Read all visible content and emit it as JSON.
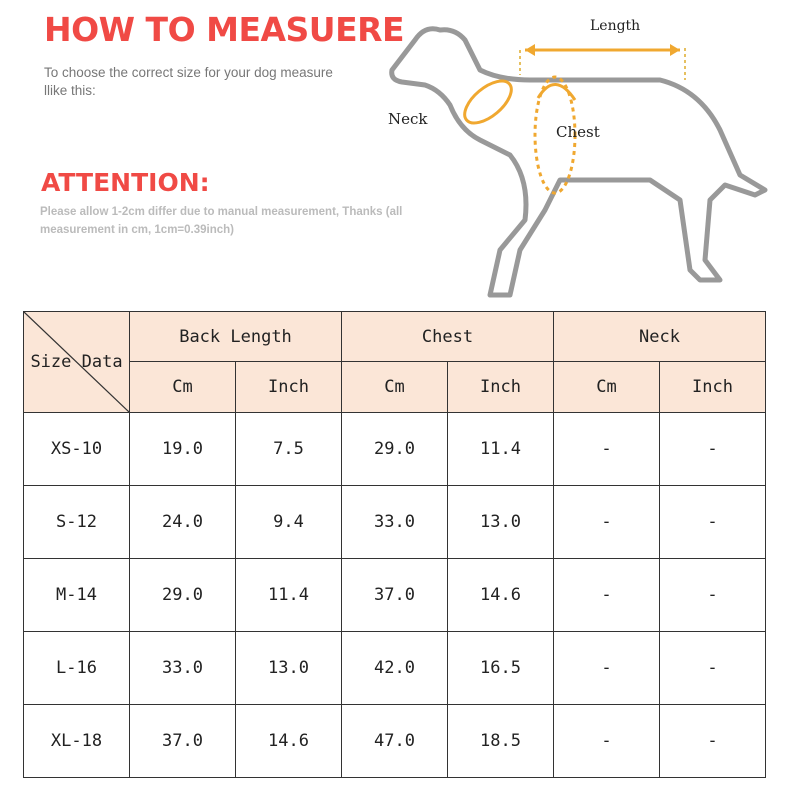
{
  "header": {
    "title": "HOW TO MEASUERE",
    "intro": "To choose the correct size for your dog measure llike this:",
    "attention_title": "ATTENTION:",
    "attention_text": "Please allow 1-2cm differ due to manual measurement, Thanks (all measurement in cm, 1cm=0.39inch)"
  },
  "diagram": {
    "length": "Length",
    "neck": "Neck",
    "chest": "Chest",
    "accent": "#f0a830"
  },
  "table": {
    "corner": "Size Data",
    "groups": [
      "Back Length",
      "Chest",
      "Neck"
    ],
    "units": [
      "Cm",
      "Inch",
      "Cm",
      "Inch",
      "Cm",
      "Inch"
    ],
    "rows": [
      [
        "XS-10",
        "19.0",
        "7.5",
        "29.0",
        "11.4",
        "-",
        "-"
      ],
      [
        "S-12",
        "24.0",
        "9.4",
        "33.0",
        "13.0",
        "-",
        "-"
      ],
      [
        "M-14",
        "29.0",
        "11.4",
        "37.0",
        "14.6",
        "-",
        "-"
      ],
      [
        "L-16",
        "33.0",
        "13.0",
        "42.0",
        "16.5",
        "-",
        "-"
      ],
      [
        "XL-18",
        "37.0",
        "14.6",
        "47.0",
        "18.5",
        "-",
        "-"
      ]
    ],
    "header_color": "#fbe6d7"
  }
}
